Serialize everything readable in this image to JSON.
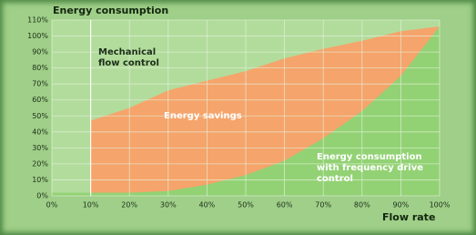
{
  "chart_data": {
    "type": "area",
    "y_label": "Energy consumption",
    "x_label": "Flow rate",
    "annotation": "Energy savings",
    "x": [
      0,
      10,
      20,
      30,
      40,
      50,
      60,
      70,
      80,
      90,
      100
    ],
    "series": [
      {
        "name": "Mechanical flow control",
        "color": "#f5a46b",
        "values": [
          null,
          47,
          55,
          66,
          72,
          78,
          86,
          92,
          97,
          103,
          106
        ]
      },
      {
        "name": "Energy consumption with frequency drive control",
        "color": "#92d274",
        "values": [
          2,
          2,
          2,
          3,
          7,
          13,
          22,
          36,
          53,
          75,
          106
        ]
      }
    ],
    "xlim": [
      0,
      100
    ],
    "xticks": [
      {
        "value": 0,
        "label": "0%"
      },
      {
        "value": 10,
        "label": "10%"
      },
      {
        "value": 20,
        "label": "20%"
      },
      {
        "value": 30,
        "label": "30%"
      },
      {
        "value": 40,
        "label": "40%"
      },
      {
        "value": 50,
        "label": "50%"
      },
      {
        "value": 60,
        "label": "60%"
      },
      {
        "value": 70,
        "label": "70%"
      },
      {
        "value": 80,
        "label": "80%"
      },
      {
        "value": 90,
        "label": "90%"
      },
      {
        "value": 100,
        "label": "100%"
      }
    ],
    "ylim": [
      0,
      110
    ],
    "yticks": [
      {
        "value": 0,
        "label": "0%"
      },
      {
        "value": 10,
        "label": "10%"
      },
      {
        "value": 20,
        "label": "20%"
      },
      {
        "value": 30,
        "label": "30%"
      },
      {
        "value": 40,
        "label": "40%"
      },
      {
        "value": 50,
        "label": "50%"
      },
      {
        "value": 60,
        "label": "60%"
      },
      {
        "value": 70,
        "label": "70%"
      },
      {
        "value": 80,
        "label": "80%"
      },
      {
        "value": 90,
        "label": "90%"
      },
      {
        "value": 100,
        "label": "100%"
      },
      {
        "value": 110,
        "label": "110%"
      }
    ],
    "grid": true
  }
}
